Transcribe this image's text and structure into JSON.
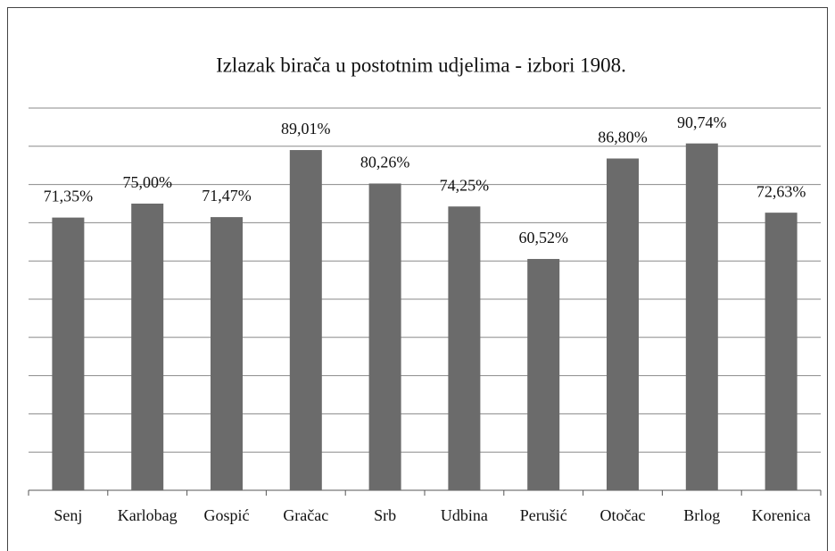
{
  "chart_data": {
    "type": "bar",
    "title": "Izlazak birača u postotnim udjelima - izbori 1908.",
    "categories": [
      "Senj",
      "Karlobag",
      "Gospić",
      "Gračac",
      "Srb",
      "Udbina",
      "Perušić",
      "Otočac",
      "Brlog",
      "Korenica"
    ],
    "values": [
      71.35,
      75.0,
      71.47,
      89.01,
      80.26,
      74.25,
      60.52,
      86.8,
      90.74,
      72.63
    ],
    "value_labels": [
      "71,35%",
      "75,00%",
      "71,47%",
      "89,01%",
      "80,26%",
      "74,25%",
      "60,52%",
      "86,80%",
      "90,74%",
      "72,63%"
    ],
    "color": "#6b6b6b",
    "ylim": [
      0,
      100
    ],
    "yticks": [
      0,
      10,
      20,
      30,
      40,
      50,
      60,
      70,
      80,
      90,
      100
    ],
    "grid": true
  }
}
